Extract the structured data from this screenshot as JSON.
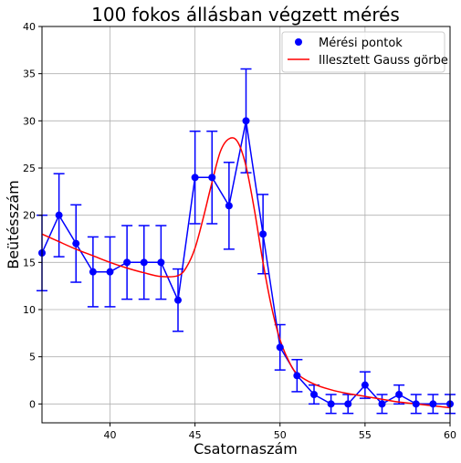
{
  "chart_data": {
    "type": "scatter",
    "title": "100 fokos állásban végzett mérés",
    "xlabel": "Csatornaszám",
    "ylabel": "Beütésszám",
    "xlim": [
      36,
      60
    ],
    "ylim": [
      -2,
      40
    ],
    "xticks": [
      40,
      45,
      50,
      55,
      60
    ],
    "yticks": [
      0,
      5,
      10,
      15,
      20,
      25,
      30,
      35,
      40
    ],
    "grid": true,
    "legend_position": "top-right",
    "series": [
      {
        "name": "Mérési pontok",
        "kind": "points-with-errorbars",
        "color": "#0000ff",
        "x": [
          36,
          37,
          38,
          39,
          40,
          41,
          42,
          43,
          44,
          45,
          46,
          47,
          48,
          49,
          50,
          51,
          52,
          53,
          54,
          55,
          56,
          57,
          58,
          59,
          60
        ],
        "y": [
          16,
          20,
          17,
          14,
          14,
          15,
          15,
          15,
          11,
          24,
          24,
          21,
          30,
          18,
          6,
          3,
          1,
          0,
          0,
          2,
          0,
          1,
          0,
          0,
          0
        ],
        "yerr": [
          4,
          4.4,
          4.1,
          3.7,
          3.7,
          3.9,
          3.9,
          3.9,
          3.3,
          4.9,
          4.9,
          4.6,
          5.5,
          4.2,
          2.4,
          1.7,
          1,
          1,
          1,
          1.4,
          1,
          1,
          1,
          1,
          1
        ]
      },
      {
        "name": "Illesztett Gauss görbe",
        "kind": "line",
        "color": "#ff0000",
        "x": [
          36,
          37,
          38,
          39,
          40,
          41,
          42,
          43,
          44,
          44.5,
          45,
          45.5,
          46,
          46.5,
          47,
          47.5,
          48,
          48.5,
          49,
          49.5,
          50,
          50.5,
          51,
          52,
          53,
          54,
          55,
          56,
          57,
          58,
          59,
          60
        ],
        "y": [
          18,
          17.2,
          16.4,
          15.7,
          15,
          14.4,
          13.9,
          13.5,
          13.6,
          14.5,
          16.5,
          19.8,
          23.5,
          26.8,
          28.1,
          27.8,
          25.2,
          20.5,
          15,
          10.3,
          6.8,
          4.6,
          3.2,
          2.1,
          1.5,
          1.1,
          0.8,
          0.5,
          0.2,
          0,
          -0.2,
          -0.4
        ]
      }
    ]
  }
}
